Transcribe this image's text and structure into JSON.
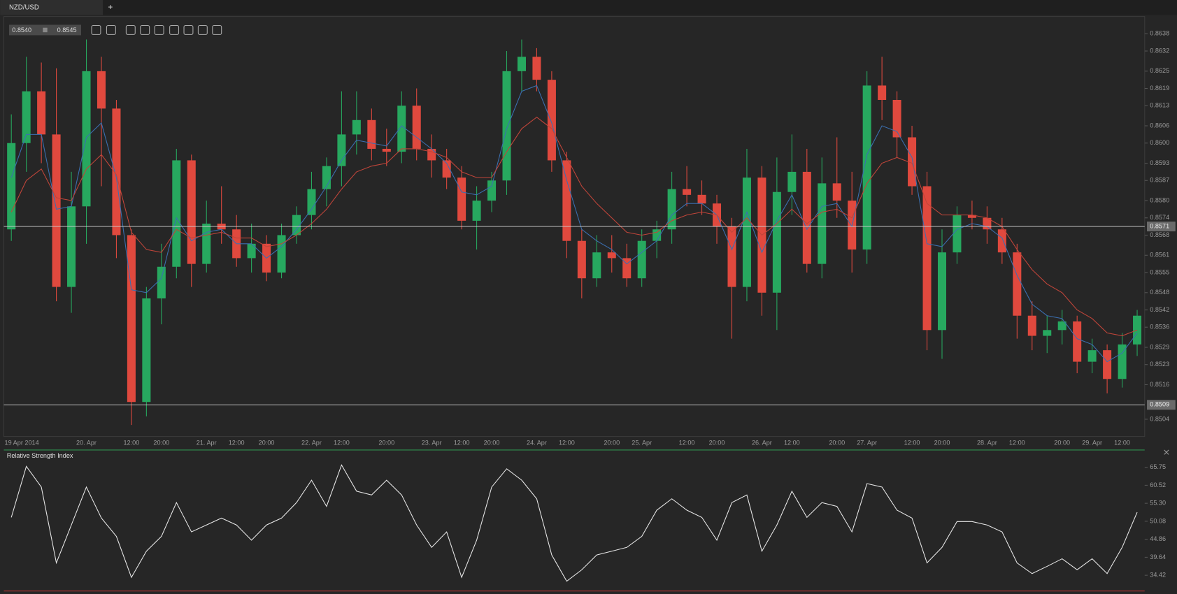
{
  "tab": {
    "title": "NZD/USD",
    "add": "+"
  },
  "quote": {
    "bid": "0.8540",
    "ask": "0.8545"
  },
  "chart_data": [
    {
      "type": "candlestick",
      "x": [
        "19 Apr 2014",
        null,
        null,
        null,
        null,
        "20. Apr",
        null,
        null,
        "12:00",
        null,
        "20:00",
        null,
        null,
        "21. Apr",
        null,
        "12:00",
        null,
        "20:00",
        null,
        null,
        "22. Apr",
        null,
        "12:00",
        null,
        null,
        "20:00",
        null,
        null,
        "23. Apr",
        null,
        "12:00",
        null,
        "20:00",
        null,
        null,
        "24. Apr",
        null,
        "12:00",
        null,
        null,
        "20:00",
        null,
        "25. Apr",
        null,
        null,
        "12:00",
        null,
        "20:00",
        null,
        null,
        "26. Apr",
        null,
        "12:00",
        null,
        null,
        "20:00",
        null,
        "27. Apr",
        null,
        null,
        "12:00",
        null,
        "20:00",
        null,
        null,
        "28. Apr",
        null,
        "12:00",
        null,
        null,
        "20:00",
        null,
        "29. Apr",
        null,
        "12:00",
        null
      ],
      "open": [
        0.857,
        0.86,
        0.8618,
        0.8603,
        0.855,
        0.8578,
        0.8625,
        0.8612,
        0.8568,
        0.851,
        0.8546,
        0.8557,
        0.8594,
        0.8558,
        0.8572,
        0.857,
        0.856,
        0.8565,
        0.8555,
        0.8568,
        0.8575,
        0.8584,
        0.8592,
        0.8603,
        0.8608,
        0.8598,
        0.8597,
        0.8613,
        0.8598,
        0.8594,
        0.8588,
        0.8573,
        0.858,
        0.8587,
        0.8625,
        0.863,
        0.8622,
        0.8594,
        0.8566,
        0.8553,
        0.8562,
        0.856,
        0.8553,
        0.8566,
        0.857,
        0.8584,
        0.8582,
        0.8579,
        0.8571,
        0.855,
        0.8588,
        0.8548,
        0.8583,
        0.859,
        0.8558,
        0.8586,
        0.858,
        0.8563,
        0.862,
        0.8615,
        0.8602,
        0.8585,
        0.8535,
        0.8562,
        0.8575,
        0.8574,
        0.857,
        0.8562,
        0.854,
        0.8533,
        0.8535,
        0.8538,
        0.8524,
        0.8528,
        0.8518,
        0.853
      ],
      "high": [
        0.861,
        0.863,
        0.8628,
        0.8626,
        0.859,
        0.8636,
        0.863,
        0.8615,
        0.857,
        0.855,
        0.8565,
        0.8598,
        0.8596,
        0.858,
        0.8585,
        0.8575,
        0.8572,
        0.8568,
        0.8572,
        0.8578,
        0.859,
        0.8595,
        0.8618,
        0.8618,
        0.8612,
        0.8605,
        0.8618,
        0.8619,
        0.8603,
        0.8598,
        0.8592,
        0.8585,
        0.859,
        0.8632,
        0.8636,
        0.8633,
        0.8625,
        0.8597,
        0.857,
        0.8568,
        0.8568,
        0.8565,
        0.857,
        0.8573,
        0.859,
        0.8592,
        0.8587,
        0.8582,
        0.8574,
        0.8598,
        0.8592,
        0.8595,
        0.8603,
        0.8598,
        0.8595,
        0.8602,
        0.859,
        0.8625,
        0.863,
        0.8618,
        0.8606,
        0.859,
        0.857,
        0.8578,
        0.858,
        0.8578,
        0.8574,
        0.8565,
        0.8545,
        0.854,
        0.8542,
        0.854,
        0.8532,
        0.853,
        0.8534,
        0.8542
      ],
      "low": [
        0.8566,
        0.859,
        0.8593,
        0.8545,
        0.8541,
        0.8565,
        0.8585,
        0.856,
        0.8502,
        0.8505,
        0.8537,
        0.8553,
        0.855,
        0.8555,
        0.8565,
        0.8557,
        0.8555,
        0.8552,
        0.8553,
        0.8565,
        0.857,
        0.8578,
        0.8585,
        0.8596,
        0.8594,
        0.8592,
        0.8593,
        0.8594,
        0.8588,
        0.8584,
        0.857,
        0.8563,
        0.8576,
        0.8582,
        0.8618,
        0.8618,
        0.859,
        0.856,
        0.8546,
        0.855,
        0.8555,
        0.855,
        0.855,
        0.856,
        0.8565,
        0.8578,
        0.8575,
        0.8565,
        0.8532,
        0.8545,
        0.854,
        0.8535,
        0.8575,
        0.8555,
        0.8553,
        0.8574,
        0.8555,
        0.8558,
        0.8608,
        0.8595,
        0.8582,
        0.8528,
        0.8525,
        0.8558,
        0.857,
        0.8565,
        0.8558,
        0.8532,
        0.8528,
        0.8527,
        0.853,
        0.852,
        0.852,
        0.8513,
        0.8515,
        0.8526
      ],
      "close": [
        0.86,
        0.8618,
        0.8603,
        0.855,
        0.8578,
        0.8625,
        0.8612,
        0.8568,
        0.851,
        0.8546,
        0.8557,
        0.8594,
        0.8558,
        0.8572,
        0.857,
        0.856,
        0.8565,
        0.8555,
        0.8568,
        0.8575,
        0.8584,
        0.8592,
        0.8603,
        0.8608,
        0.8598,
        0.8597,
        0.8613,
        0.8598,
        0.8594,
        0.8588,
        0.8573,
        0.858,
        0.8587,
        0.8625,
        0.863,
        0.8622,
        0.8594,
        0.8566,
        0.8553,
        0.8562,
        0.856,
        0.8553,
        0.8566,
        0.857,
        0.8584,
        0.8582,
        0.8579,
        0.8571,
        0.855,
        0.8588,
        0.8548,
        0.8583,
        0.859,
        0.8558,
        0.8586,
        0.858,
        0.8563,
        0.862,
        0.8615,
        0.8602,
        0.8585,
        0.8535,
        0.8562,
        0.8575,
        0.8574,
        0.857,
        0.8562,
        0.854,
        0.8533,
        0.8535,
        0.8538,
        0.8524,
        0.8528,
        0.8518,
        0.853,
        0.854
      ],
      "up_color": "#27a85f",
      "down_color": "#e0493e",
      "overlays": [
        {
          "color": "#3b6fb0",
          "values": [
            0.8588,
            0.8603,
            0.8603,
            0.8577,
            0.8578,
            0.8602,
            0.8607,
            0.8588,
            0.8549,
            0.8548,
            0.8553,
            0.8574,
            0.8566,
            0.8569,
            0.857,
            0.8565,
            0.8565,
            0.856,
            0.8564,
            0.857,
            0.8577,
            0.8585,
            0.8594,
            0.8601,
            0.86,
            0.8599,
            0.8606,
            0.8602,
            0.8598,
            0.8593,
            0.8583,
            0.8582,
            0.8585,
            0.8605,
            0.8618,
            0.862,
            0.8607,
            0.8587,
            0.857,
            0.8566,
            0.8563,
            0.8558,
            0.8562,
            0.8566,
            0.8575,
            0.8579,
            0.8579,
            0.8575,
            0.8563,
            0.8576,
            0.8562,
            0.8573,
            0.8582,
            0.857,
            0.8578,
            0.8579,
            0.8571,
            0.8596,
            0.8606,
            0.8604,
            0.8595,
            0.8565,
            0.8564,
            0.857,
            0.8572,
            0.8571,
            0.8567,
            0.8554,
            0.8544,
            0.854,
            0.8539,
            0.8532,
            0.853,
            0.8524,
            0.8527,
            0.8534
          ]
        },
        {
          "color": "#c0453a",
          "values": [
            0.8576,
            0.8587,
            0.8591,
            0.8581,
            0.858,
            0.8591,
            0.8596,
            0.8589,
            0.8569,
            0.8563,
            0.8562,
            0.857,
            0.8567,
            0.8568,
            0.8569,
            0.8567,
            0.8567,
            0.8564,
            0.8565,
            0.8568,
            0.8572,
            0.8577,
            0.8584,
            0.859,
            0.8592,
            0.8593,
            0.8598,
            0.8598,
            0.8597,
            0.8595,
            0.859,
            0.8588,
            0.8588,
            0.8597,
            0.8605,
            0.8609,
            0.8605,
            0.8595,
            0.8585,
            0.8579,
            0.8574,
            0.8569,
            0.8568,
            0.8569,
            0.8573,
            0.8575,
            0.8576,
            0.8575,
            0.8569,
            0.8574,
            0.8568,
            0.8572,
            0.8577,
            0.8572,
            0.8576,
            0.8577,
            0.8574,
            0.8586,
            0.8593,
            0.8595,
            0.8593,
            0.8579,
            0.8575,
            0.8575,
            0.8575,
            0.8574,
            0.8571,
            0.8563,
            0.8556,
            0.8551,
            0.8548,
            0.8542,
            0.8539,
            0.8534,
            0.8533,
            0.8535
          ]
        }
      ],
      "horizontal_lines": [
        0.8571,
        0.8509
      ],
      "ylim": [
        0.8498,
        0.8644
      ],
      "yticks": [
        0.8638,
        0.8632,
        0.8625,
        0.8619,
        0.8613,
        0.8606,
        {
          "value": 0.86,
          "label": "0.8600"
        },
        0.8593,
        0.8587,
        {
          "value": 0.858,
          "label": "0.8580"
        },
        0.8574,
        0.8568,
        0.8561,
        0.8555,
        0.8548,
        0.8542,
        0.8536,
        0.8529,
        0.8523,
        0.8516,
        0.8504
      ]
    },
    {
      "type": "line",
      "title": "Relative Strength Index",
      "color": "#e6e6e6",
      "values": [
        51.2,
        66,
        60,
        38,
        49,
        60,
        51,
        45.7,
        33.8,
        41.4,
        45.7,
        55.5,
        47,
        49,
        51,
        49,
        44.6,
        49,
        51,
        55.5,
        62,
        54.4,
        66.4,
        58.8,
        57.7,
        62,
        57.7,
        49,
        42.5,
        47,
        33.8,
        44.6,
        60,
        65.3,
        62,
        56.6,
        40.3,
        32.7,
        36,
        40.3,
        41.4,
        42.5,
        45.7,
        53.3,
        56.6,
        53.3,
        51.2,
        44.6,
        55.5,
        57.7,
        41.4,
        49,
        58.8,
        51.2,
        55.5,
        54.4,
        47,
        61,
        60,
        53.3,
        51,
        38,
        42.5,
        50,
        50,
        49,
        47,
        38,
        34.9,
        37,
        39.2,
        36,
        39.2,
        34.9,
        42.5,
        52.7
      ],
      "ylim": [
        29.85,
        70.75
      ],
      "yticks": [
        65.75,
        60.52,
        {
          "value": 55.3,
          "label": "55.30"
        },
        50.08,
        44.86,
        39.64,
        34.42
      ]
    }
  ]
}
